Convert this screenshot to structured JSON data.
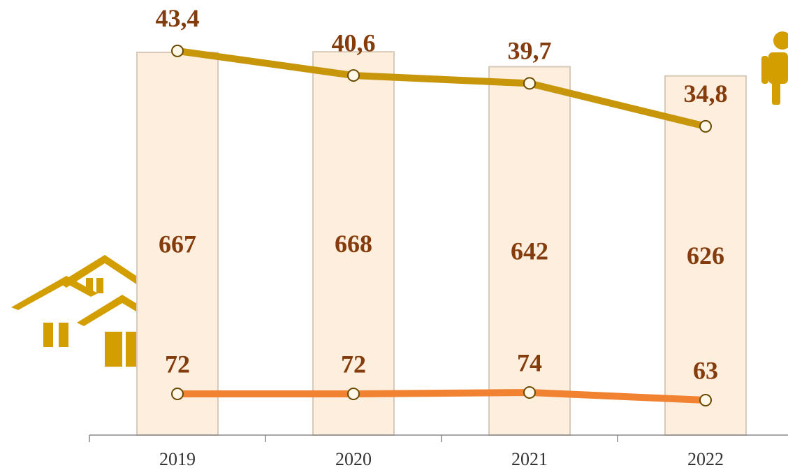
{
  "chart_data": {
    "type": "combo",
    "categories": [
      "2019",
      "2020",
      "2021",
      "2022"
    ],
    "series": [
      {
        "type": "bar",
        "color": "#fdeedd",
        "values": [
          667,
          668,
          642,
          626
        ]
      },
      {
        "type": "line",
        "color": "#c8960a",
        "values": [
          43.4,
          40.6,
          39.7,
          34.8
        ],
        "value_labels": [
          "43,4",
          "40,6",
          "39,7",
          "34,8"
        ]
      },
      {
        "type": "line",
        "color": "#f08232",
        "values": [
          72,
          72,
          74,
          63
        ]
      }
    ]
  }
}
